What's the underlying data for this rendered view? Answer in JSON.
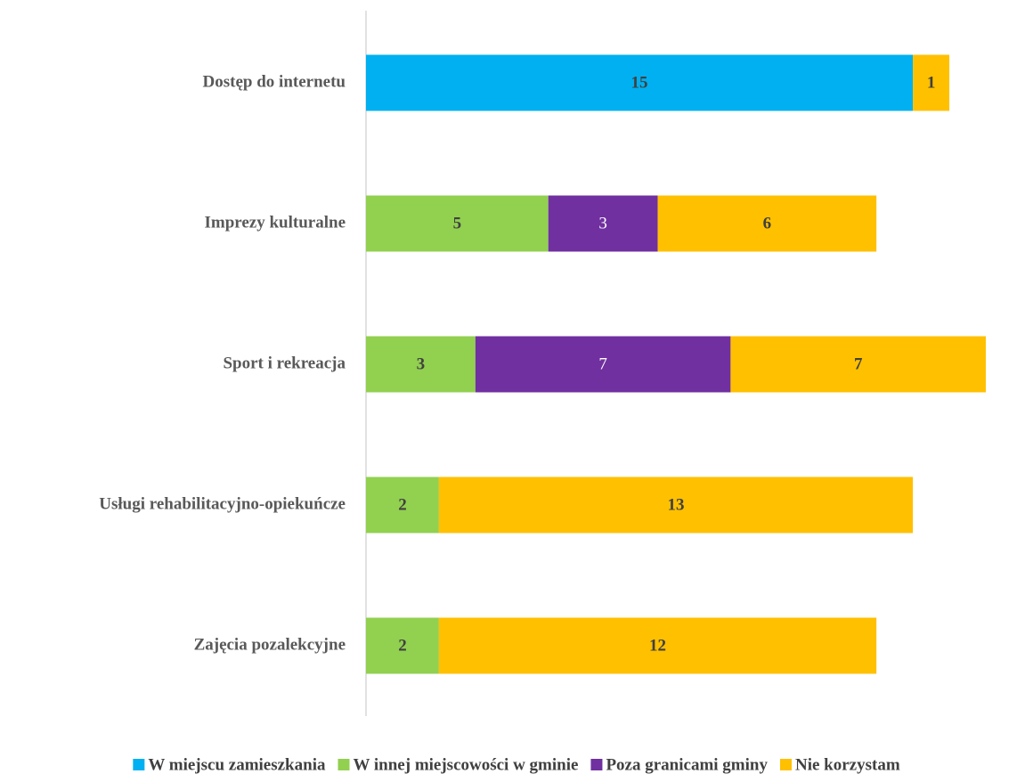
{
  "chart_data": {
    "type": "stacked_bar_horizontal",
    "categories": [
      "Dostęp do internetu",
      "Imprezy kulturalne",
      "Sport i rekreacja",
      "Usługi rehabilitacyjno-opiekuńcze",
      "Zajęcia pozalekcyjne"
    ],
    "series": [
      {
        "name": "W miejscu zamieszkania",
        "color": "#00b0f0",
        "label_color": "#404040",
        "values": [
          15,
          null,
          null,
          null,
          null
        ]
      },
      {
        "name": "W innej miejscowości w gminie",
        "color": "#92d050",
        "label_color": "#404040",
        "values": [
          null,
          5,
          3,
          2,
          2
        ]
      },
      {
        "name": "Poza granicami gminy",
        "color": "#7030a0",
        "label_color": "#ffffff",
        "values": [
          null,
          3,
          7,
          null,
          null
        ]
      },
      {
        "name": "Nie korzystam",
        "color": "#ffc000",
        "label_color": "#404040",
        "values": [
          1,
          6,
          7,
          13,
          12
        ]
      }
    ],
    "legend": "bottom"
  }
}
